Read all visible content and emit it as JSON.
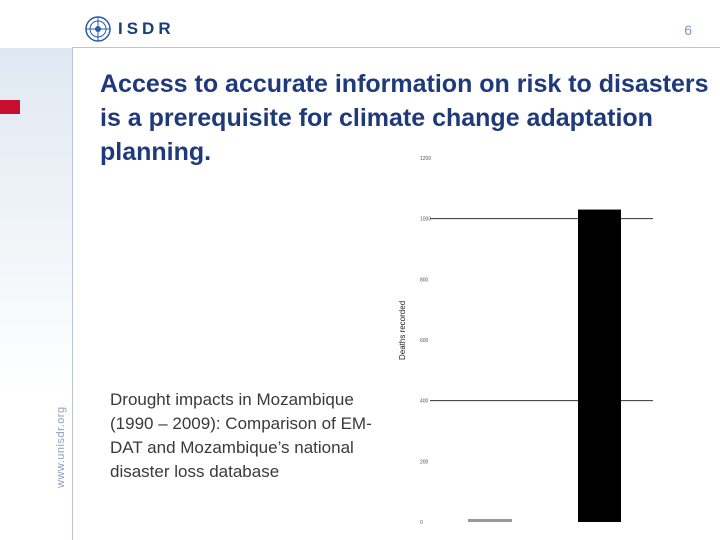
{
  "header": {
    "logo_text": "ISDR",
    "page_number": "6"
  },
  "sidebar": {
    "url": "www.unisdr.org"
  },
  "title": "Access to accurate information on risk to disasters is a prerequisite for climate change adaptation planning.",
  "caption": "Drought impacts in Mozambique (1990 – 2009): Comparison of EM-DAT and Mozambique’s national disaster loss database",
  "colors": {
    "accent": "#1f3a7a",
    "red_mark": "#c8102e",
    "bar_dark": "#000000",
    "bar_light": "#999999"
  },
  "chart_data": {
    "type": "bar",
    "ylabel": "Deaths recorded",
    "ylim": [
      0,
      1200
    ],
    "yticks": [
      0,
      200,
      400,
      600,
      800,
      1000,
      1200
    ],
    "ytick_labels": [
      "0",
      "200",
      "400",
      "600",
      "800",
      "1000",
      "1200"
    ],
    "series": [
      {
        "values": [
          10
        ],
        "color": "#999999"
      },
      {
        "values": [
          1030
        ],
        "color": "#000000"
      }
    ]
  }
}
